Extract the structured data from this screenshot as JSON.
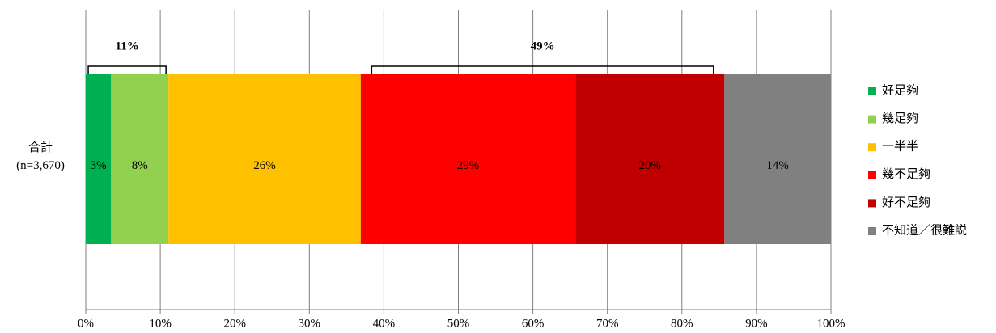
{
  "chart_data": {
    "type": "stacked_bar_horizontal",
    "categories": [
      "合計\n(n=3,670)"
    ],
    "series": [
      {
        "name": "好足夠",
        "color": "#00b050",
        "values": [
          3.4
        ],
        "value_labels": [
          "3%"
        ]
      },
      {
        "name": "幾足夠",
        "color": "#92d050",
        "values": [
          7.7
        ],
        "value_labels": [
          "8%"
        ]
      },
      {
        "name": "一半半",
        "color": "#ffc000",
        "values": [
          25.8
        ],
        "value_labels": [
          "26%"
        ]
      },
      {
        "name": "幾不足夠",
        "color": "#ff0000",
        "values": [
          28.8
        ],
        "value_labels": [
          "29%"
        ]
      },
      {
        "name": "好不足夠",
        "color": "#c00000",
        "values": [
          20.0
        ],
        "value_labels": [
          "20%"
        ]
      },
      {
        "name": "不知道／很難説",
        "color": "#808080",
        "values": [
          14.3
        ],
        "value_labels": [
          "14%"
        ]
      }
    ],
    "annotations": [
      "11%",
      "49%"
    ],
    "xlim": [
      0,
      100
    ],
    "xticks": [
      {
        "value": 0,
        "label": "0%"
      },
      {
        "value": 10,
        "label": "10%"
      },
      {
        "value": 20,
        "label": "20%"
      },
      {
        "value": 30,
        "label": "30%"
      },
      {
        "value": 40,
        "label": "40%"
      },
      {
        "value": 50,
        "label": "50%"
      },
      {
        "value": 60,
        "label": "60%"
      },
      {
        "value": 70,
        "label": "70%"
      },
      {
        "value": 80,
        "label": "80%"
      },
      {
        "value": 90,
        "label": "90%"
      },
      {
        "value": 100,
        "label": "100%"
      }
    ],
    "grid": true,
    "legend": "right"
  }
}
